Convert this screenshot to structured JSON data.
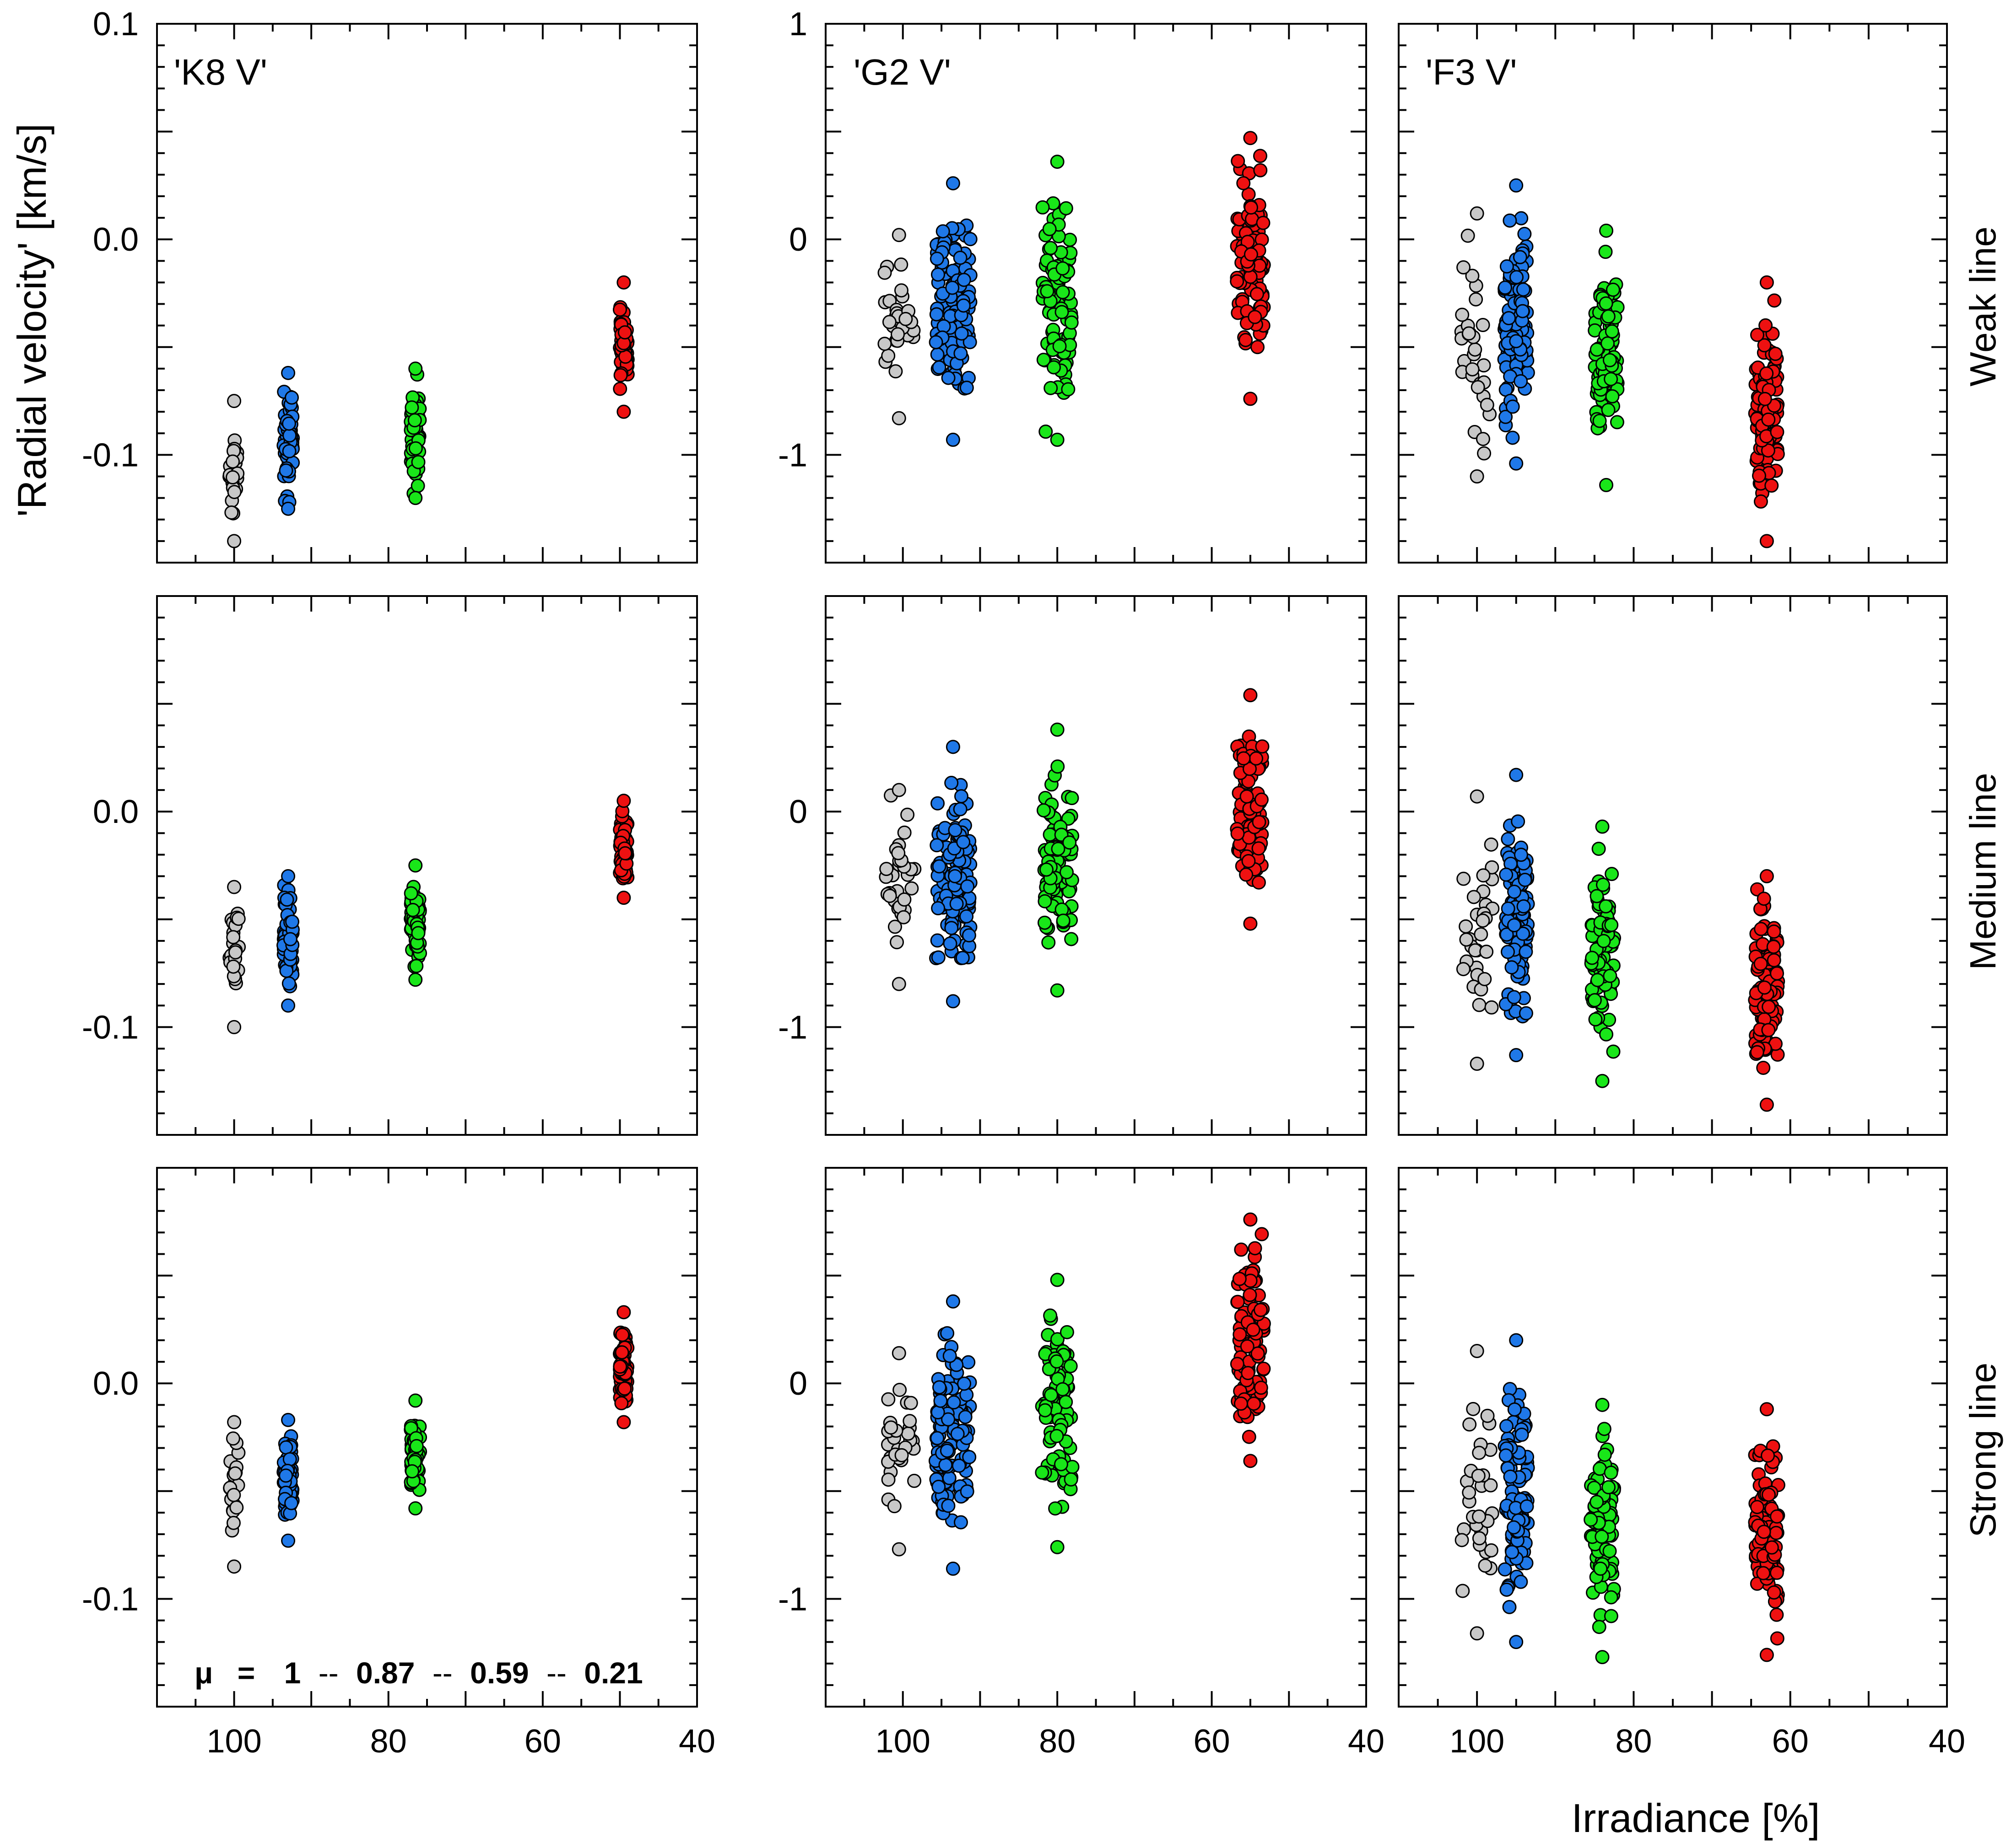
{
  "chart_data": {
    "type": "scatter",
    "title": "",
    "ylabel": "'Radial velocity' [km/s]",
    "xlabel": "Irradiance [%]",
    "x_ticks": [
      100,
      80,
      60,
      40
    ],
    "columns": [
      "'K8 V'",
      "'G2 V'",
      "'F3 V'"
    ],
    "rows": [
      "Weak line",
      "Medium line",
      "Strong line"
    ],
    "annotation": {
      "symbol": "μ",
      "eq": "=",
      "sep": "--",
      "values": [
        "1",
        "0.87",
        "0.59",
        "0.21"
      ]
    },
    "series_colors": {
      "mu_1": "#c8c8c8",
      "mu_0.87": "#1f78e8",
      "mu_0.59": "#19e619",
      "mu_0.21": "#ee1111"
    },
    "series_names": [
      "mu_1",
      "mu_0.87",
      "mu_0.59",
      "mu_0.21"
    ],
    "panels": [
      {
        "row": 0,
        "col": 0,
        "xlim": [
          110,
          40
        ],
        "ylim": [
          -0.15,
          0.1
        ],
        "yticks": [
          "0.1",
          "0.0",
          "-0.1"
        ],
        "ytick_values": [
          0.1,
          0.0,
          -0.1
        ],
        "groups": [
          {
            "series": "mu_1",
            "x": 100,
            "spread": 1.2,
            "ymin": -0.14,
            "ymax": -0.075,
            "n": 22
          },
          {
            "series": "mu_0.87",
            "x": 93,
            "spread": 1.2,
            "ymin": -0.125,
            "ymax": -0.062,
            "n": 60
          },
          {
            "series": "mu_0.59",
            "x": 76.5,
            "spread": 1.2,
            "ymin": -0.12,
            "ymax": -0.06,
            "n": 60
          },
          {
            "series": "mu_0.21",
            "x": 49.5,
            "spread": 1.0,
            "ymin": -0.08,
            "ymax": -0.02,
            "n": 60
          }
        ]
      },
      {
        "row": 0,
        "col": 1,
        "xlim": [
          110,
          40
        ],
        "ylim": [
          -1.5,
          1.0
        ],
        "yticks": [
          "1",
          "0",
          "-1"
        ],
        "ytick_values": [
          1,
          0,
          -1
        ],
        "groups": [
          {
            "series": "mu_1",
            "x": 100.5,
            "spread": 4.0,
            "ymin": -0.83,
            "ymax": 0.02,
            "n": 30
          },
          {
            "series": "mu_0.87",
            "x": 93.5,
            "spread": 4.5,
            "ymin": -0.93,
            "ymax": 0.26,
            "n": 110
          },
          {
            "series": "mu_0.59",
            "x": 80,
            "spread": 4.0,
            "ymin": -0.93,
            "ymax": 0.36,
            "n": 90
          },
          {
            "series": "mu_0.21",
            "x": 55,
            "spread": 3.5,
            "ymin": -0.74,
            "ymax": 0.47,
            "n": 90
          }
        ]
      },
      {
        "row": 0,
        "col": 2,
        "xlim": [
          110,
          40
        ],
        "ylim": [
          -1.5,
          1.0
        ],
        "yticks": [],
        "ytick_values": [
          1,
          0,
          -1
        ],
        "groups": [
          {
            "series": "mu_1",
            "x": 100,
            "spread": 4.0,
            "ymin": -1.1,
            "ymax": 0.12,
            "n": 30
          },
          {
            "series": "mu_0.87",
            "x": 95,
            "spread": 3.0,
            "ymin": -1.04,
            "ymax": 0.25,
            "n": 100
          },
          {
            "series": "mu_0.59",
            "x": 83.5,
            "spread": 3.0,
            "ymin": -1.14,
            "ymax": 0.04,
            "n": 90
          },
          {
            "series": "mu_0.21",
            "x": 63,
            "spread": 3.0,
            "ymin": -1.4,
            "ymax": -0.2,
            "n": 90
          }
        ]
      },
      {
        "row": 1,
        "col": 0,
        "xlim": [
          110,
          40
        ],
        "ylim": [
          -0.15,
          0.1
        ],
        "yticks": [
          "0.0",
          "-0.1"
        ],
        "ytick_values": [
          0.0,
          -0.1
        ],
        "groups": [
          {
            "series": "mu_1",
            "x": 100,
            "spread": 1.2,
            "ymin": -0.1,
            "ymax": -0.035,
            "n": 22
          },
          {
            "series": "mu_0.87",
            "x": 93,
            "spread": 1.2,
            "ymin": -0.09,
            "ymax": -0.03,
            "n": 60
          },
          {
            "series": "mu_0.59",
            "x": 76.5,
            "spread": 1.2,
            "ymin": -0.078,
            "ymax": -0.025,
            "n": 60
          },
          {
            "series": "mu_0.21",
            "x": 49.5,
            "spread": 1.0,
            "ymin": -0.04,
            "ymax": 0.005,
            "n": 60
          }
        ]
      },
      {
        "row": 1,
        "col": 1,
        "xlim": [
          110,
          40
        ],
        "ylim": [
          -1.5,
          1.0
        ],
        "yticks": [
          "0",
          "-1"
        ],
        "ytick_values": [
          0,
          -1
        ],
        "groups": [
          {
            "series": "mu_1",
            "x": 100.5,
            "spread": 4.0,
            "ymin": -0.8,
            "ymax": 0.1,
            "n": 30
          },
          {
            "series": "mu_0.87",
            "x": 93.5,
            "spread": 4.5,
            "ymin": -0.88,
            "ymax": 0.3,
            "n": 110
          },
          {
            "series": "mu_0.59",
            "x": 80,
            "spread": 4.0,
            "ymin": -0.83,
            "ymax": 0.38,
            "n": 90
          },
          {
            "series": "mu_0.21",
            "x": 55,
            "spread": 3.5,
            "ymin": -0.52,
            "ymax": 0.54,
            "n": 90
          }
        ]
      },
      {
        "row": 1,
        "col": 2,
        "xlim": [
          110,
          40
        ],
        "ylim": [
          -1.5,
          1.0
        ],
        "yticks": [],
        "ytick_values": [
          0,
          -1
        ],
        "groups": [
          {
            "series": "mu_1",
            "x": 100,
            "spread": 4.0,
            "ymin": -1.17,
            "ymax": 0.07,
            "n": 30
          },
          {
            "series": "mu_0.87",
            "x": 95,
            "spread": 3.0,
            "ymin": -1.13,
            "ymax": 0.17,
            "n": 100
          },
          {
            "series": "mu_0.59",
            "x": 84,
            "spread": 3.0,
            "ymin": -1.25,
            "ymax": -0.07,
            "n": 90
          },
          {
            "series": "mu_0.21",
            "x": 63,
            "spread": 3.0,
            "ymin": -1.36,
            "ymax": -0.3,
            "n": 90
          }
        ]
      },
      {
        "row": 2,
        "col": 0,
        "xlim": [
          110,
          40
        ],
        "ylim": [
          -0.15,
          0.1
        ],
        "yticks": [
          "0.0",
          "-0.1"
        ],
        "ytick_values": [
          0.0,
          -0.1
        ],
        "groups": [
          {
            "series": "mu_1",
            "x": 100,
            "spread": 1.2,
            "ymin": -0.085,
            "ymax": -0.018,
            "n": 22
          },
          {
            "series": "mu_0.87",
            "x": 93,
            "spread": 1.2,
            "ymin": -0.073,
            "ymax": -0.017,
            "n": 60
          },
          {
            "series": "mu_0.59",
            "x": 76.5,
            "spread": 1.2,
            "ymin": -0.058,
            "ymax": -0.008,
            "n": 60
          },
          {
            "series": "mu_0.21",
            "x": 49.5,
            "spread": 1.0,
            "ymin": -0.018,
            "ymax": 0.033,
            "n": 60
          }
        ]
      },
      {
        "row": 2,
        "col": 1,
        "xlim": [
          110,
          40
        ],
        "ylim": [
          -1.5,
          1.0
        ],
        "yticks": [
          "0",
          "-1"
        ],
        "ytick_values": [
          0,
          -1
        ],
        "groups": [
          {
            "series": "mu_1",
            "x": 100.5,
            "spread": 4.0,
            "ymin": -0.77,
            "ymax": 0.14,
            "n": 30
          },
          {
            "series": "mu_0.87",
            "x": 93.5,
            "spread": 4.5,
            "ymin": -0.86,
            "ymax": 0.38,
            "n": 110
          },
          {
            "series": "mu_0.59",
            "x": 80,
            "spread": 4.0,
            "ymin": -0.76,
            "ymax": 0.48,
            "n": 90
          },
          {
            "series": "mu_0.21",
            "x": 55,
            "spread": 3.5,
            "ymin": -0.36,
            "ymax": 0.76,
            "n": 90
          }
        ]
      },
      {
        "row": 2,
        "col": 2,
        "xlim": [
          110,
          40
        ],
        "ylim": [
          -1.5,
          1.0
        ],
        "yticks": [],
        "ytick_values": [
          0,
          -1
        ],
        "groups": [
          {
            "series": "mu_1",
            "x": 100,
            "spread": 4.0,
            "ymin": -1.16,
            "ymax": 0.15,
            "n": 30
          },
          {
            "series": "mu_0.87",
            "x": 95,
            "spread": 3.0,
            "ymin": -1.2,
            "ymax": 0.2,
            "n": 100
          },
          {
            "series": "mu_0.59",
            "x": 84,
            "spread": 3.0,
            "ymin": -1.27,
            "ymax": -0.1,
            "n": 90
          },
          {
            "series": "mu_0.21",
            "x": 63,
            "spread": 3.0,
            "ymin": -1.26,
            "ymax": -0.12,
            "n": 90
          }
        ]
      }
    ]
  }
}
